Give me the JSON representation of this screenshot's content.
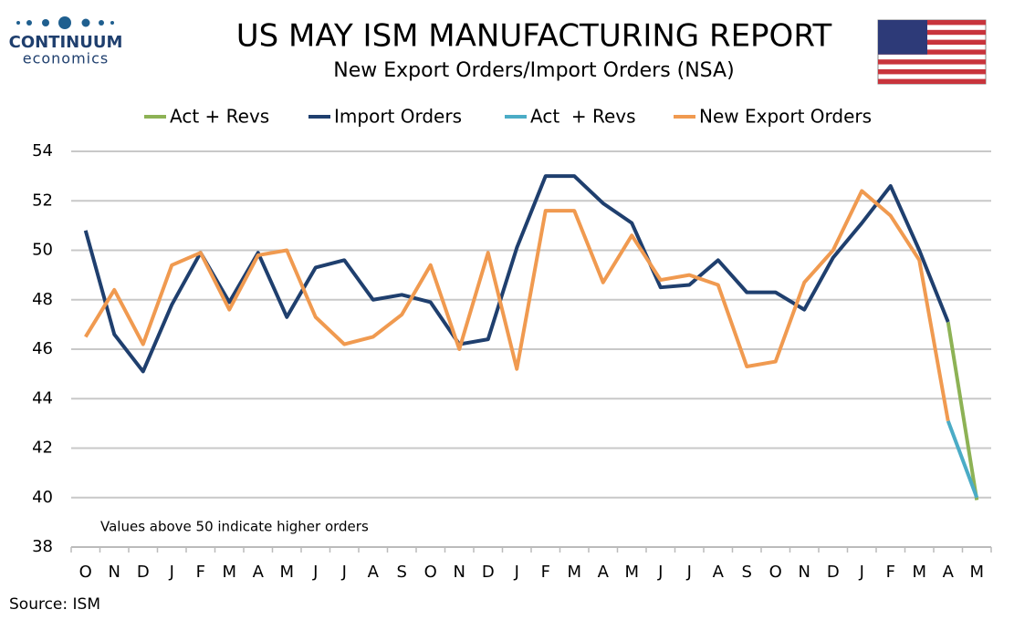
{
  "logo": {
    "name": "CONTINUUM",
    "tagline": "economics"
  },
  "chart_data": {
    "type": "line",
    "title": "US MAY ISM MANUFACTURING REPORT",
    "subtitle": "New Export Orders/Import Orders (NSA)",
    "annotation": "Values above 50 indicate higher orders",
    "source": "Source: ISM",
    "categories": [
      "O",
      "N",
      "D",
      "J",
      "F",
      "M",
      "A",
      "M",
      "J",
      "J",
      "A",
      "S",
      "O",
      "N",
      "D",
      "J",
      "F",
      "M",
      "A",
      "M",
      "J",
      "J",
      "A",
      "S",
      "O",
      "N",
      "D",
      "J",
      "F",
      "M",
      "A",
      "M"
    ],
    "series": [
      {
        "name": "Act + Revs",
        "color": "#8db255",
        "values": [
          null,
          null,
          null,
          null,
          null,
          null,
          null,
          null,
          null,
          null,
          null,
          null,
          null,
          null,
          null,
          null,
          null,
          null,
          null,
          null,
          null,
          null,
          null,
          null,
          null,
          null,
          null,
          null,
          null,
          null,
          47.1,
          39.9
        ]
      },
      {
        "name": "Import Orders",
        "color": "#1f3f6e",
        "values": [
          50.8,
          46.6,
          45.1,
          47.8,
          49.9,
          47.9,
          49.9,
          47.3,
          49.3,
          49.6,
          48.0,
          48.2,
          47.9,
          46.2,
          46.4,
          50.1,
          53.0,
          53.0,
          51.9,
          51.1,
          48.5,
          48.6,
          49.6,
          48.3,
          48.3,
          47.6,
          49.7,
          51.1,
          52.6,
          50.0,
          47.1,
          null
        ]
      },
      {
        "name": "Act  + Revs",
        "color": "#4bacc6",
        "values": [
          null,
          null,
          null,
          null,
          null,
          null,
          null,
          null,
          null,
          null,
          null,
          null,
          null,
          null,
          null,
          null,
          null,
          null,
          null,
          null,
          null,
          null,
          null,
          null,
          null,
          null,
          null,
          null,
          null,
          null,
          43.1,
          40.0
        ]
      },
      {
        "name": "New Export Orders",
        "color": "#f09a50",
        "values": [
          46.5,
          48.4,
          46.2,
          49.4,
          49.9,
          47.6,
          49.8,
          50.0,
          47.3,
          46.2,
          46.5,
          47.4,
          49.4,
          46.0,
          49.9,
          45.2,
          51.6,
          51.6,
          48.7,
          50.6,
          48.8,
          49.0,
          48.6,
          45.3,
          45.5,
          48.7,
          50.0,
          52.4,
          51.4,
          49.6,
          43.1,
          null
        ]
      }
    ],
    "ylim": [
      38,
      54
    ],
    "yticks": [
      38,
      40,
      42,
      44,
      46,
      48,
      50,
      52,
      54
    ],
    "grid": true,
    "legend": "top"
  }
}
